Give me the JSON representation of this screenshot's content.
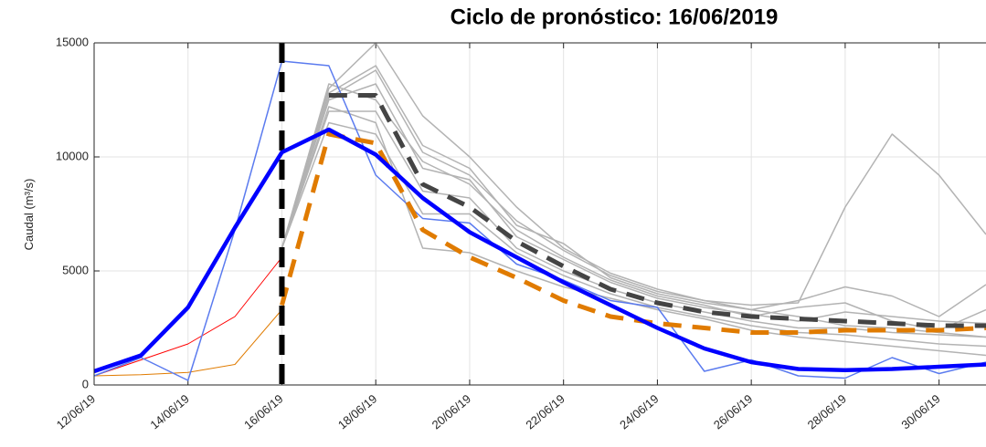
{
  "chart_data": {
    "type": "line",
    "title": "Ciclo de pronóstico: 16/06/2019",
    "y_label": "Caudal (m³/s)",
    "categories": [
      "12/06/19",
      null,
      "14/06/19",
      null,
      "16/06/19",
      null,
      "18/06/19",
      null,
      "20/06/19",
      null,
      "22/06/19",
      null,
      "24/06/19",
      null,
      "26/06/19",
      null,
      "28/06/19",
      null,
      "30/06/19",
      null
    ],
    "ylim": [
      0,
      15000
    ],
    "yticks": [
      0,
      5000,
      10000,
      15000
    ],
    "grid": true,
    "marker_date": "16/06/19",
    "series": [
      {
        "color": "#b3b3b3",
        "width": 1.5,
        "style": "solid",
        "values": [
          null,
          null,
          null,
          null,
          6000,
          13000,
          15000,
          11800,
          10000,
          7800,
          6000,
          4900,
          4200,
          3700,
          3500,
          3600,
          7800,
          11000,
          9200,
          6600
        ]
      },
      {
        "color": "#b3b3b3",
        "width": 1.5,
        "style": "solid",
        "values": [
          null,
          null,
          null,
          null,
          6000,
          12800,
          14000,
          10500,
          9500,
          7000,
          6200,
          4700,
          4000,
          3600,
          3300,
          3700,
          4300,
          3900,
          3000,
          4400
        ]
      },
      {
        "color": "#b3b3b3",
        "width": 1.5,
        "style": "solid",
        "values": [
          null,
          null,
          null,
          null,
          6000,
          12500,
          13200,
          9500,
          9000,
          6500,
          5500,
          4500,
          3800,
          3400,
          3100,
          2800,
          3200,
          3000,
          2800,
          2700
        ]
      },
      {
        "color": "#b3b3b3",
        "width": 1.5,
        "style": "solid",
        "values": [
          null,
          null,
          null,
          null,
          6000,
          12000,
          12000,
          8500,
          8200,
          6000,
          5000,
          4200,
          3600,
          3200,
          2800,
          2500,
          2500,
          2300,
          2200,
          2100
        ]
      },
      {
        "color": "#b3b3b3",
        "width": 1.5,
        "style": "solid",
        "values": [
          null,
          null,
          null,
          null,
          6000,
          11500,
          11000,
          7500,
          7500,
          5800,
          4800,
          4000,
          3400,
          3000,
          2600,
          2300,
          2200,
          2000,
          1800,
          1700
        ]
      },
      {
        "color": "#b3b3b3",
        "width": 1.5,
        "style": "solid",
        "values": [
          null,
          null,
          null,
          null,
          6000,
          12200,
          11500,
          6000,
          5800,
          5000,
          4300,
          3800,
          3300,
          2900,
          2400,
          2100,
          1900,
          1700,
          1500,
          1300
        ]
      },
      {
        "color": "#b3b3b3",
        "width": 1.5,
        "style": "solid",
        "values": [
          null,
          null,
          null,
          null,
          6000,
          13200,
          12500,
          9800,
          8800,
          6800,
          5600,
          4600,
          3900,
          3500,
          3000,
          3400,
          3600,
          2800,
          2400,
          3300
        ]
      },
      {
        "color": "#b3b3b3",
        "width": 1.5,
        "style": "solid",
        "values": [
          null,
          null,
          null,
          null,
          6000,
          12600,
          13800,
          10200,
          9200,
          7200,
          5900,
          4800,
          4100,
          3700,
          3300,
          3000,
          2600,
          2500,
          2300,
          2100
        ]
      },
      {
        "color": "#ff0000",
        "width": 1,
        "style": "solid",
        "values": [
          400,
          1100,
          1800,
          3000,
          5600,
          null,
          null,
          null,
          null,
          null,
          null,
          null,
          null,
          null,
          null,
          null,
          null,
          null,
          null,
          null
        ]
      },
      {
        "color": "#e07b00",
        "width": 1,
        "style": "solid",
        "values": [
          400,
          450,
          550,
          900,
          3300,
          null,
          null,
          null,
          null,
          null,
          null,
          null,
          null,
          null,
          null,
          null,
          null,
          null,
          null,
          null
        ]
      },
      {
        "color": "#5b7bef",
        "width": 1.5,
        "style": "solid",
        "values": [
          400,
          1200,
          200,
          6800,
          14200,
          14000,
          9200,
          7300,
          7100,
          5300,
          4600,
          3700,
          3400,
          600,
          1100,
          400,
          300,
          1200,
          500,
          1000
        ]
      },
      {
        "color": "#e07b00",
        "width": 5,
        "style": "dashed",
        "values": [
          null,
          null,
          null,
          null,
          3500,
          11000,
          10600,
          6800,
          5600,
          4700,
          3700,
          3000,
          2700,
          2500,
          2300,
          2300,
          2400,
          2400,
          2400,
          2500
        ]
      },
      {
        "color": "#444444",
        "width": 5,
        "style": "dashed",
        "values": [
          null,
          null,
          null,
          null,
          null,
          12700,
          12700,
          8800,
          7800,
          6300,
          5200,
          4200,
          3600,
          3200,
          3000,
          2900,
          2800,
          2700,
          2600,
          2600
        ]
      },
      {
        "color": "#0000ff",
        "width": 4.5,
        "style": "solid",
        "values": [
          600,
          1300,
          3400,
          6900,
          10200,
          11200,
          10100,
          8200,
          6700,
          5600,
          4500,
          3500,
          2500,
          1600,
          1000,
          700,
          650,
          700,
          800,
          900
        ]
      }
    ]
  }
}
